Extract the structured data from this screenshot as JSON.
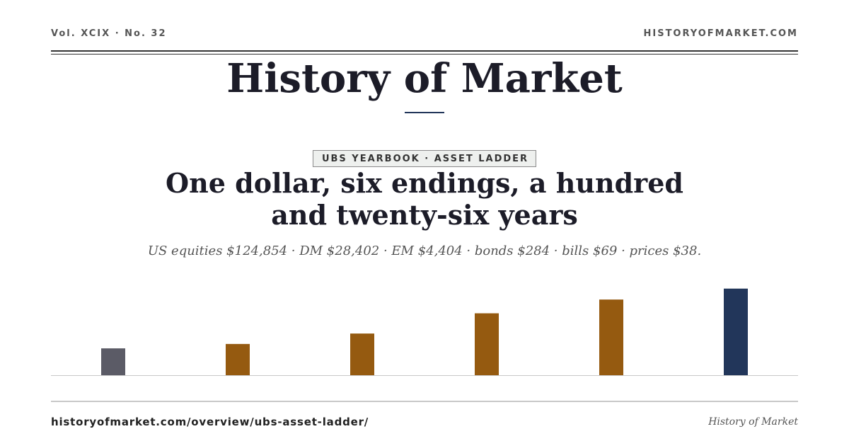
{
  "header": {
    "issue": "Vol. XCIX · No. 32",
    "site": "HISTORYOFMARKET.COM"
  },
  "masthead": "History of Market",
  "kicker": "UBS YEARBOOK · ASSET LADDER",
  "headline": "One dollar, six endings, a hundred and twenty-six years",
  "summary": "US equities $124,854 · DM $28,402 · EM $4,404 · bonds $284 · bills $69 · prices $38.",
  "chart_data": {
    "type": "bar",
    "categories": [
      null,
      null,
      null,
      null,
      null,
      null
    ],
    "values": [
      38,
      69,
      284,
      4404,
      28402,
      124854
    ],
    "colors": [
      "#5b5b66",
      "#955a10",
      "#955a10",
      "#955a10",
      "#955a10",
      "#22365a"
    ],
    "ylim": [
      1,
      1000000
    ],
    "log_scale": true
  },
  "footer": {
    "url": "historyofmarket.com/overview/ubs-asset-ladder/",
    "brand": "History of Market"
  }
}
